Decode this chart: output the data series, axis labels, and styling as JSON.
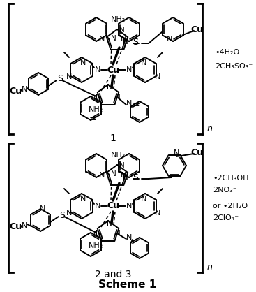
{
  "bg_color": "#ffffff",
  "text_color": "#000000",
  "figsize": [
    3.67,
    4.18
  ],
  "dpi": 100,
  "ann1": [
    "•4H₂O",
    "2CH₃SO₃⁻"
  ],
  "ann2": [
    "•2CH₃OH",
    "2NO₃⁻",
    "or •2H₂O",
    "2ClO₄⁻"
  ],
  "label1": "1",
  "label2": "2 and 3",
  "title": "Scheme 1"
}
